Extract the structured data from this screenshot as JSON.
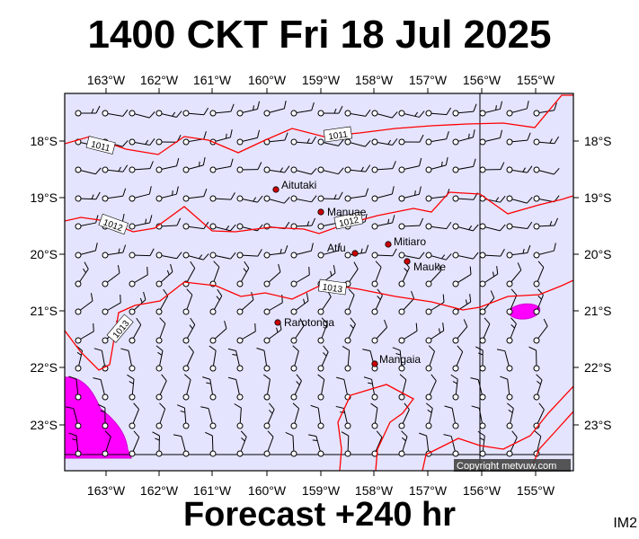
{
  "header": {
    "title": "1400 CKT Fri 18 Jul 2025"
  },
  "footer": {
    "forecast": "Forecast +240 hr",
    "image_code": "IM2"
  },
  "copyright": "Copyright metvuw.com",
  "map": {
    "lon_labels": [
      "163°W",
      "162°W",
      "161°W",
      "160°W",
      "159°W",
      "158°W",
      "157°W",
      "156°W",
      "155°W"
    ],
    "lat_labels": [
      "18°S",
      "19°S",
      "20°S",
      "21°S",
      "22°S",
      "23°S"
    ],
    "colors": {
      "ocean": "#e4e4ff",
      "isobar": "#ff0000",
      "rain": "#ff00ff",
      "place_dot": "#cc0000"
    },
    "places": [
      {
        "name": "Aitutaki"
      },
      {
        "name": "Manuae"
      },
      {
        "name": "Mitiaro"
      },
      {
        "name": "Atiu"
      },
      {
        "name": "Mauke"
      },
      {
        "name": "Rarotonga"
      },
      {
        "name": "Mangaia"
      }
    ],
    "isobar_labels": [
      "1011",
      "1011",
      "1012",
      "1012",
      "1013",
      "1013"
    ]
  }
}
